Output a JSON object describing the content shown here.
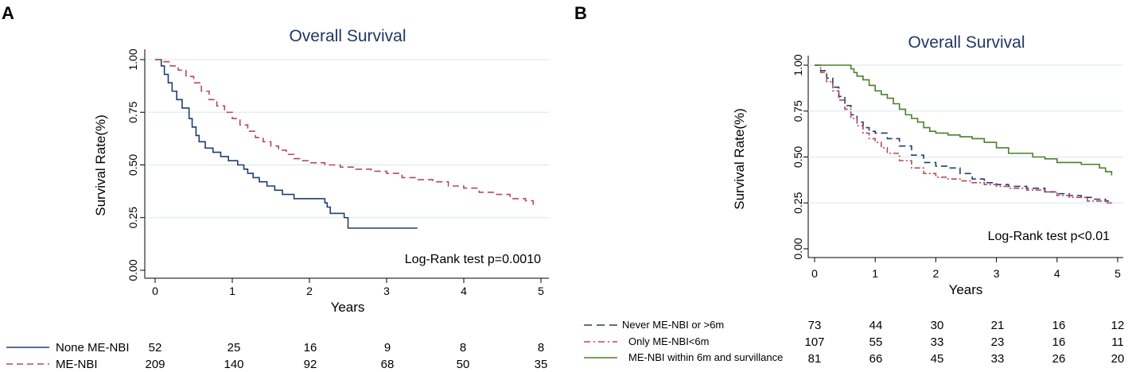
{
  "chart_data": [
    {
      "panel": "A",
      "type": "line",
      "title": "Overall Survival",
      "xlabel": "Years",
      "ylabel": "Survival Rate(%)",
      "xlim": [
        0,
        5
      ],
      "ylim": [
        0,
        1
      ],
      "xticks": [
        "0",
        "1",
        "2",
        "3",
        "4",
        "5"
      ],
      "yticks": [
        "0.00",
        "0.25",
        "0.50",
        "0.75",
        "1.00"
      ],
      "annotation": "Log-Rank test p=0.0010",
      "series": [
        {
          "name": "None ME-NBI",
          "color": "#1f3f6e",
          "dash": "solid",
          "x": [
            0,
            0.08,
            0.12,
            0.17,
            0.22,
            0.28,
            0.35,
            0.44,
            0.48,
            0.53,
            0.57,
            0.65,
            0.75,
            0.85,
            0.95,
            1.07,
            1.15,
            1.2,
            1.27,
            1.35,
            1.45,
            1.55,
            1.65,
            1.8,
            2.0,
            2.2,
            2.23,
            2.27,
            2.45,
            2.5,
            3.4
          ],
          "y": [
            1.0,
            0.97,
            0.93,
            0.89,
            0.85,
            0.81,
            0.77,
            0.72,
            0.68,
            0.64,
            0.61,
            0.58,
            0.56,
            0.54,
            0.52,
            0.5,
            0.48,
            0.46,
            0.44,
            0.42,
            0.4,
            0.38,
            0.36,
            0.34,
            0.34,
            0.32,
            0.3,
            0.27,
            0.25,
            0.2,
            0.2
          ]
        },
        {
          "name": "ME-NBI",
          "color": "#b5485e",
          "dash": "dashed",
          "x": [
            0,
            0.1,
            0.2,
            0.3,
            0.4,
            0.5,
            0.6,
            0.7,
            0.8,
            0.9,
            1.0,
            1.1,
            1.2,
            1.3,
            1.4,
            1.5,
            1.6,
            1.7,
            1.8,
            1.9,
            2.0,
            2.2,
            2.4,
            2.6,
            2.8,
            3.0,
            3.2,
            3.4,
            3.6,
            3.8,
            4.0,
            4.2,
            4.4,
            4.6,
            4.8,
            4.9
          ],
          "y": [
            1.0,
            0.99,
            0.97,
            0.95,
            0.92,
            0.89,
            0.85,
            0.81,
            0.78,
            0.75,
            0.72,
            0.69,
            0.66,
            0.63,
            0.61,
            0.59,
            0.57,
            0.55,
            0.53,
            0.52,
            0.51,
            0.5,
            0.49,
            0.48,
            0.47,
            0.46,
            0.44,
            0.43,
            0.42,
            0.4,
            0.39,
            0.37,
            0.36,
            0.34,
            0.33,
            0.31
          ]
        }
      ],
      "risk_table": {
        "rows": [
          {
            "label": "None ME-NBI",
            "values": [
              "52",
              "25",
              "16",
              "9",
              "8",
              "8"
            ]
          },
          {
            "label": "ME-NBI",
            "values": [
              "209",
              "140",
              "92",
              "68",
              "50",
              "35"
            ]
          }
        ]
      }
    },
    {
      "panel": "B",
      "type": "line",
      "title": "Overall Survival",
      "xlabel": "Years",
      "ylabel": "Survival Rate(%)",
      "xlim": [
        0,
        5
      ],
      "ylim": [
        0,
        1
      ],
      "xticks": [
        "0",
        "1",
        "2",
        "3",
        "4",
        "5"
      ],
      "yticks": [
        "0.00",
        "0.25",
        "0.50",
        "0.75",
        "1.00"
      ],
      "annotation": "Log-Rank test p<0.01",
      "series": [
        {
          "name": "Never ME-NBI or >6m",
          "color": "#1f3f6e",
          "dash": "dashed",
          "x": [
            0,
            0.1,
            0.2,
            0.3,
            0.4,
            0.5,
            0.6,
            0.7,
            0.8,
            0.9,
            1.0,
            1.2,
            1.4,
            1.6,
            1.8,
            2.0,
            2.2,
            2.4,
            2.6,
            2.8,
            3.0,
            3.2,
            3.5,
            3.8,
            4.0,
            4.2,
            4.4,
            4.6,
            4.8,
            4.9
          ],
          "y": [
            1.0,
            0.97,
            0.93,
            0.88,
            0.83,
            0.78,
            0.73,
            0.69,
            0.66,
            0.64,
            0.63,
            0.6,
            0.56,
            0.51,
            0.47,
            0.45,
            0.44,
            0.41,
            0.38,
            0.36,
            0.35,
            0.34,
            0.33,
            0.31,
            0.3,
            0.29,
            0.28,
            0.27,
            0.26,
            0.25
          ]
        },
        {
          "name": "Only ME-NBI<6m",
          "color": "#b5485e",
          "dash": "dashdot",
          "x": [
            0,
            0.1,
            0.2,
            0.3,
            0.4,
            0.5,
            0.6,
            0.7,
            0.8,
            0.9,
            1.0,
            1.1,
            1.2,
            1.4,
            1.6,
            1.8,
            2.0,
            2.2,
            2.4,
            2.6,
            2.8,
            3.0,
            3.2,
            3.5,
            3.8,
            4.0,
            4.2,
            4.5,
            4.8,
            4.9
          ],
          "y": [
            1.0,
            0.96,
            0.91,
            0.86,
            0.81,
            0.76,
            0.71,
            0.67,
            0.63,
            0.6,
            0.58,
            0.55,
            0.52,
            0.48,
            0.44,
            0.41,
            0.39,
            0.38,
            0.37,
            0.36,
            0.35,
            0.34,
            0.33,
            0.32,
            0.31,
            0.29,
            0.28,
            0.26,
            0.25,
            0.24
          ]
        },
        {
          "name": "ME-NBI within 6m and survillance",
          "color": "#4a7f2a",
          "dash": "solid",
          "x": [
            0,
            0.55,
            0.6,
            0.65,
            0.7,
            0.8,
            0.9,
            1.0,
            1.1,
            1.2,
            1.3,
            1.4,
            1.5,
            1.6,
            1.7,
            1.8,
            1.9,
            2.0,
            2.2,
            2.4,
            2.6,
            2.8,
            3.0,
            3.2,
            3.6,
            3.8,
            4.0,
            4.4,
            4.7,
            4.8,
            4.9
          ],
          "y": [
            1.0,
            1.0,
            0.98,
            0.96,
            0.94,
            0.92,
            0.89,
            0.86,
            0.84,
            0.82,
            0.79,
            0.76,
            0.73,
            0.71,
            0.69,
            0.66,
            0.64,
            0.63,
            0.62,
            0.61,
            0.6,
            0.58,
            0.55,
            0.52,
            0.5,
            0.49,
            0.47,
            0.46,
            0.44,
            0.42,
            0.4
          ]
        }
      ],
      "risk_table": {
        "rows": [
          {
            "label": "Never ME-NBI or >6m",
            "values": [
              "73",
              "44",
              "30",
              "21",
              "16",
              "12"
            ]
          },
          {
            "label": "Only ME-NBI<6m",
            "values": [
              "107",
              "55",
              "33",
              "23",
              "16",
              "11"
            ]
          },
          {
            "label": "ME-NBI within 6m and survillance",
            "values": [
              "81",
              "66",
              "45",
              "33",
              "26",
              "20"
            ]
          }
        ]
      }
    }
  ]
}
